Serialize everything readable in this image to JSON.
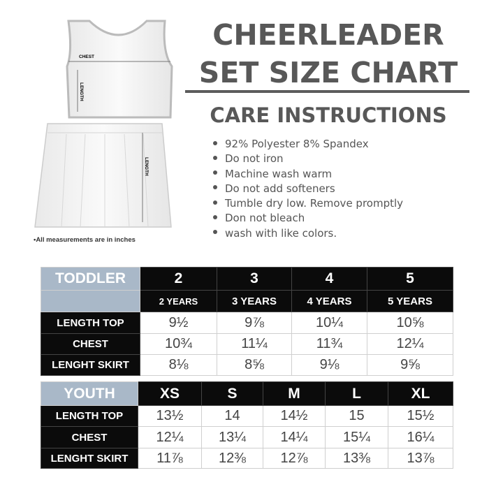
{
  "title": {
    "line1": "CHEERLEADER",
    "line2": "SET SIZE CHART"
  },
  "care": {
    "heading": "CARE INSTRUCTIONS",
    "items": [
      "92% Polyester 8% Spandex",
      "Do not iron",
      "Machine wash warm",
      "Do not add softeners",
      "Tumble dry low. Remove promptly",
      "Don not bleach",
      "wash with like colors."
    ]
  },
  "illustration": {
    "chest_label": "CHEST",
    "length_label": "LENGTH",
    "skirt_length_label": "LENGTH",
    "note": "•All measurements are in inches"
  },
  "toddler": {
    "label": "TODDLER",
    "sizes": [
      "2",
      "3",
      "4",
      "5"
    ],
    "ages": [
      "2 YEARS",
      "3 YEARS",
      "4 YEARS",
      "5 YEARS"
    ],
    "rows": [
      {
        "label": "LENGTH TOP",
        "values": [
          "9½",
          "9⅞",
          "10¼",
          "10⅝"
        ]
      },
      {
        "label": "CHEST",
        "values": [
          "10¾",
          "11¼",
          "11¾",
          "12¼"
        ]
      },
      {
        "label": "LENGHT SKIRT",
        "values": [
          "8⅛",
          "8⅝",
          "9⅛",
          "9⅝"
        ]
      }
    ]
  },
  "youth": {
    "label": "YOUTH",
    "sizes": [
      "XS",
      "S",
      "M",
      "L",
      "XL"
    ],
    "rows": [
      {
        "label": "LENGTH TOP",
        "values": [
          "13½",
          "14",
          "14½",
          "15",
          "15½"
        ]
      },
      {
        "label": "CHEST",
        "values": [
          "12¼",
          "13¼",
          "14¼",
          "15¼",
          "16¼"
        ]
      },
      {
        "label": "LENGHT SKIRT",
        "values": [
          "11⅞",
          "12⅜",
          "12⅞",
          "13⅜",
          "13⅞"
        ]
      }
    ]
  }
}
